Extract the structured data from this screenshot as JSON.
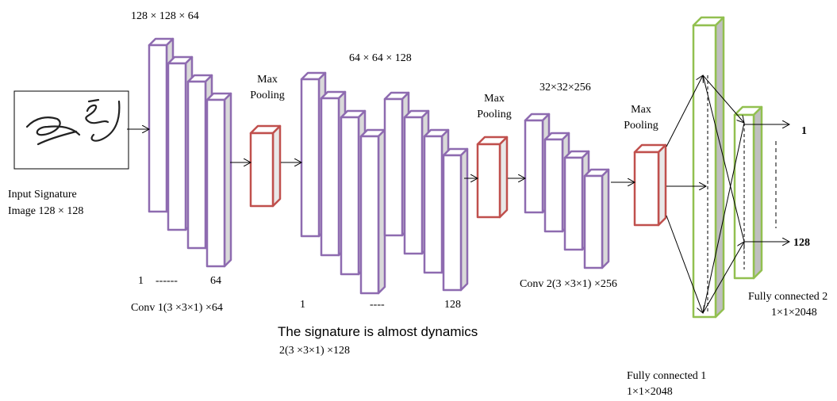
{
  "input": {
    "lines": [
      "Input Signature",
      "Image 128 × 128"
    ]
  },
  "conv1": {
    "size": "128 × 128 × 64",
    "range_start": "1",
    "range_dots": "------",
    "range_end": "64",
    "label": "Conv 1(3 ×3×1) ×64"
  },
  "pool1": {
    "lines": [
      "Max",
      "Pooling"
    ]
  },
  "conv2": {
    "size": "64 × 64 × 128",
    "range_start": "1",
    "range_dots": "----",
    "range_end": "128",
    "caption": "The signature is almost dynamics",
    "label": "2(3 ×3×1) ×128"
  },
  "pool2": {
    "lines": [
      "Max",
      "Pooling"
    ]
  },
  "conv3": {
    "size": "32×32×256",
    "label": "Conv 2(3 ×3×1) ×256"
  },
  "pool3": {
    "lines": [
      "Max",
      "Pooling"
    ]
  },
  "fc1": {
    "lines": [
      "Fully connected 1",
      "1×1×2048"
    ]
  },
  "fc2": {
    "lines": [
      "Fully connected 2",
      "1×1×2048"
    ],
    "outputs": [
      "1",
      "128"
    ]
  }
}
